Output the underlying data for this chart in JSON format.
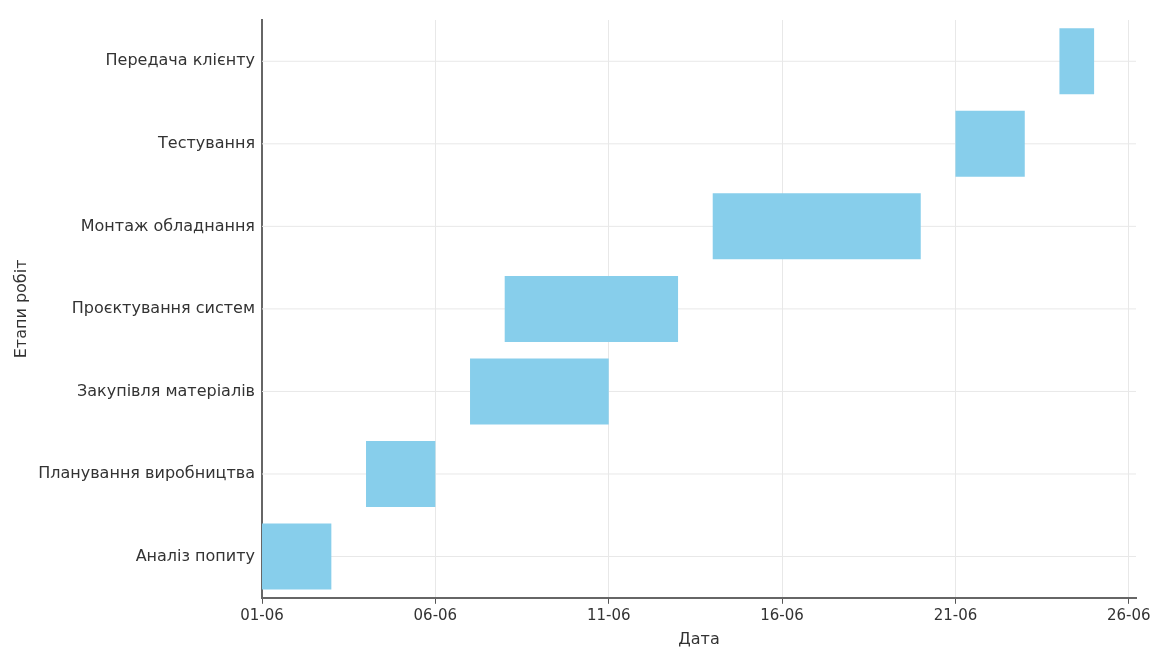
{
  "chart_data": {
    "type": "bar",
    "orientation": "horizontal",
    "xlabel": "Дата",
    "ylabel": "Етапи робіт",
    "categories": [
      "Передача клієнту",
      "Тестування",
      "Монтаж обладнання",
      "Проєктування систем",
      "Закупівля матеріалів",
      "Планування виробництва",
      "Аналіз попиту"
    ],
    "base": [
      11497,
      11494,
      11487,
      11481,
      11480,
      11477,
      11474
    ],
    "values": [
      1,
      2,
      6,
      5,
      4,
      2,
      2
    ],
    "color": "#87ceeb",
    "xlim": [
      "--06-01",
      "--06-26T05:00"
    ],
    "xticks": [
      {
        "value": "--06-01",
        "label": "01-06"
      },
      {
        "value": "--06-06",
        "label": "06-06"
      },
      {
        "value": "--06-11",
        "label": "11-06"
      },
      {
        "value": "--06-16",
        "label": "16-06"
      },
      {
        "value": "--06-21",
        "label": "21-06"
      },
      {
        "value": "--06-26",
        "label": "26-06"
      }
    ],
    "grid": true,
    "legend": false
  }
}
